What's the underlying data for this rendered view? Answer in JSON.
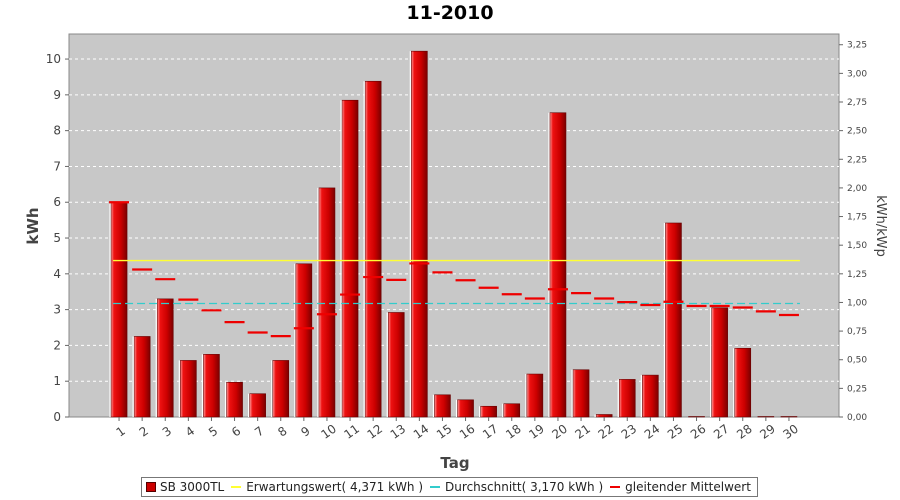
{
  "chart_data": {
    "type": "bar",
    "title": "11-2010",
    "xlabel": "Tag",
    "ylabel": "kWh",
    "y2label": "kWh/kWp",
    "ylim": [
      0,
      10.7
    ],
    "y2lim": [
      0,
      3.3437
    ],
    "yticks": [
      "0",
      "1",
      "2",
      "3",
      "4",
      "5",
      "6",
      "7",
      "8",
      "9",
      "10"
    ],
    "y2ticks": [
      "0,00",
      "0,25",
      "0,50",
      "0,75",
      "1,00",
      "1,25",
      "1,50",
      "1,75",
      "2,00",
      "2,25",
      "2,50",
      "2,75",
      "3,00",
      "3,25"
    ],
    "grid": true,
    "legend_position": "bottom",
    "categories": [
      "1",
      "2",
      "3",
      "4",
      "5",
      "6",
      "7",
      "8",
      "9",
      "10",
      "11",
      "12",
      "13",
      "14",
      "15",
      "16",
      "17",
      "18",
      "19",
      "20",
      "21",
      "22",
      "23",
      "24",
      "25",
      "26",
      "27",
      "28",
      "29",
      "30"
    ],
    "series": [
      {
        "name": "SB 3000TL",
        "type": "bar",
        "color": "#cc0000",
        "values": [
          6.0,
          2.25,
          3.3,
          1.58,
          1.75,
          0.97,
          0.65,
          1.58,
          4.28,
          6.4,
          8.85,
          9.38,
          2.92,
          10.22,
          0.62,
          0.48,
          0.3,
          0.37,
          1.2,
          8.5,
          1.32,
          0.07,
          1.05,
          1.17,
          5.42,
          0.0,
          3.05,
          1.92,
          0.0,
          0.0
        ]
      },
      {
        "name": "Erwartungswert( 4,371 kWh )",
        "type": "line",
        "color": "#ffff33",
        "value": 4.371
      },
      {
        "name": "Durchschnitt( 3,170 kWh )",
        "type": "line",
        "color": "#33cccc",
        "value": 3.17
      },
      {
        "name": "gleitender Mittelwert",
        "type": "step",
        "color": "#ee0000",
        "values": [
          6.0,
          4.12,
          3.85,
          3.28,
          2.98,
          2.65,
          2.36,
          2.26,
          2.48,
          2.87,
          3.42,
          3.91,
          3.83,
          4.29,
          4.04,
          3.82,
          3.61,
          3.43,
          3.31,
          3.57,
          3.46,
          3.31,
          3.21,
          3.13,
          3.22,
          3.1,
          3.1,
          3.06,
          2.95,
          2.85
        ]
      }
    ]
  },
  "legend": {
    "items": [
      "SB 3000TL",
      "Erwartungswert( 4,371 kWh )",
      "Durchschnitt( 3,170 kWh )",
      "gleitender Mittelwert"
    ]
  }
}
